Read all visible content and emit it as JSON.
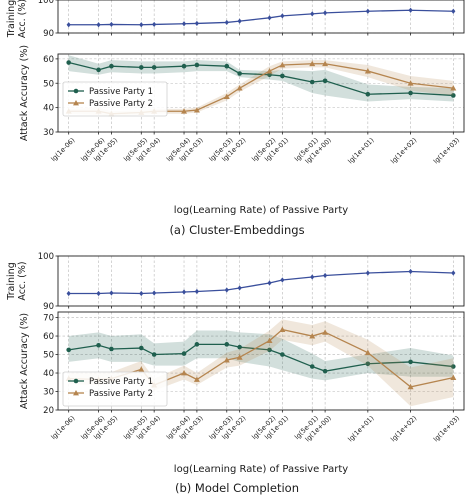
{
  "shared_x_ticks": [
    "lg(1e-06)",
    "lg(5e-06)",
    "lg(1e-05)",
    "lg(5e-05)",
    "lg(1e-04)",
    "lg(5e-04)",
    "lg(1e-03)",
    "lg(5e-03)",
    "lg(1e-02)",
    "lg(5e-02)",
    "lg(1e-01)",
    "lg(5e-01)",
    "lg(1e+00)",
    "lg(1e+01)",
    "lg(1e+02)",
    "lg(1e+03)"
  ],
  "chart_data": [
    {
      "id": "a",
      "caption": "(a) Cluster-Embeddings",
      "xlabel": "log(Learning Rate) of Passive Party",
      "x": [
        -6,
        -5.301,
        -5,
        -4.301,
        -4,
        -3.301,
        -3,
        -2.301,
        -2,
        -1.301,
        -1,
        -0.301,
        0,
        1,
        2,
        3
      ],
      "panels": [
        {
          "type": "line",
          "ylabel_lines": [
            "Training",
            "Acc. (%)"
          ],
          "ylim": [
            90,
            100
          ],
          "yticks": [
            90,
            100
          ],
          "grid": true,
          "series": [
            {
              "color": "#3a4f9c",
              "marker": "diamond",
              "values": [
                92.5,
                92.5,
                92.6,
                92.5,
                92.6,
                92.8,
                92.9,
                93.2,
                93.6,
                94.6,
                95.2,
                95.8,
                96.1,
                96.6,
                96.9,
                96.6
              ]
            }
          ]
        },
        {
          "type": "line",
          "ylabel": "Attack Accuracy (%)",
          "ylim": [
            30,
            62
          ],
          "yticks": [
            30,
            40,
            50,
            60
          ],
          "grid": true,
          "legend": "center-left",
          "series": [
            {
              "name": "Passive Party 1",
              "color": "#1f5f4e",
              "marker": "circle",
              "values": [
                58.5,
                55.5,
                57.0,
                56.5,
                56.5,
                57.0,
                57.5,
                57.0,
                54.0,
                53.5,
                53.0,
                50.5,
                51.0,
                45.5,
                46.0,
                45.0
              ],
              "band_lower": [
                55.0,
                53.5,
                54.5,
                54.0,
                54.0,
                54.5,
                55.0,
                55.0,
                52.5,
                51.5,
                51.0,
                46.0,
                45.0,
                42.5,
                43.5,
                42.5
              ],
              "band_upper": [
                61.5,
                58.0,
                59.5,
                59.0,
                59.0,
                59.0,
                59.5,
                59.0,
                55.5,
                55.0,
                55.5,
                55.0,
                55.5,
                49.5,
                48.5,
                48.0
              ]
            },
            {
              "name": "Passive Party 2",
              "color": "#b5854f",
              "marker": "triangle",
              "values": [
                38.5,
                38.5,
                37.5,
                38.0,
                38.5,
                38.5,
                39.0,
                44.5,
                48.0,
                55.0,
                57.5,
                58.0,
                58.0,
                55.0,
                50.0,
                48.0
              ],
              "band_lower": [
                37.5,
                37.0,
                36.5,
                37.0,
                37.5,
                37.5,
                38.0,
                43.0,
                46.5,
                53.0,
                56.0,
                56.5,
                56.5,
                52.5,
                47.0,
                45.0
              ],
              "band_upper": [
                39.5,
                40.0,
                38.5,
                39.0,
                39.5,
                39.5,
                40.0,
                46.0,
                49.5,
                57.0,
                59.0,
                59.5,
                59.5,
                57.5,
                53.0,
                51.0
              ]
            }
          ]
        }
      ]
    },
    {
      "id": "b",
      "caption": "(b) Model Completion",
      "xlabel": "log(Learning Rate) of Passive Party",
      "x": [
        -6,
        -5.301,
        -5,
        -4.301,
        -4,
        -3.301,
        -3,
        -2.301,
        -2,
        -1.301,
        -1,
        -0.301,
        0,
        1,
        2,
        3
      ],
      "panels": [
        {
          "type": "line",
          "ylabel_lines": [
            "Training",
            "Acc. (%)"
          ],
          "ylim": [
            90,
            100
          ],
          "yticks": [
            90,
            100
          ],
          "grid": true,
          "series": [
            {
              "color": "#3a4f9c",
              "marker": "diamond",
              "values": [
                92.5,
                92.5,
                92.6,
                92.5,
                92.6,
                92.8,
                92.9,
                93.2,
                93.6,
                94.6,
                95.2,
                95.8,
                96.1,
                96.6,
                96.9,
                96.6
              ]
            }
          ]
        },
        {
          "type": "line",
          "ylabel": "Attack Accuracy (%)",
          "ylim": [
            20,
            73
          ],
          "yticks": [
            20,
            30,
            40,
            50,
            60,
            70
          ],
          "grid": true,
          "legend": "lower-left",
          "series": [
            {
              "name": "Passive Party 1",
              "color": "#1f5f4e",
              "marker": "circle",
              "values": [
                52.5,
                55.0,
                53.0,
                53.5,
                50.0,
                50.5,
                55.5,
                55.5,
                54.0,
                52.5,
                50.0,
                43.5,
                41.0,
                45.0,
                46.0,
                43.5
              ],
              "band_lower": [
                46.0,
                48.0,
                46.0,
                46.0,
                44.0,
                44.0,
                48.0,
                48.0,
                46.0,
                43.5,
                41.5,
                37.0,
                36.0,
                40.0,
                38.0,
                38.0
              ],
              "band_upper": [
                60.0,
                62.0,
                60.0,
                61.0,
                56.0,
                57.0,
                63.0,
                63.0,
                62.0,
                61.0,
                58.5,
                50.5,
                46.5,
                50.0,
                53.5,
                49.5
              ]
            },
            {
              "name": "Passive Party 2",
              "color": "#b5854f",
              "marker": "triangle",
              "values": [
                37.0,
                36.5,
                37.0,
                42.0,
                33.5,
                40.0,
                36.5,
                47.0,
                48.5,
                57.5,
                63.5,
                60.0,
                62.0,
                51.0,
                32.5,
                37.5
              ],
              "band_lower": [
                34.0,
                33.5,
                34.0,
                38.5,
                30.5,
                36.5,
                33.5,
                43.0,
                44.0,
                52.0,
                58.0,
                55.0,
                57.0,
                44.0,
                22.0,
                27.0
              ],
              "band_upper": [
                40.0,
                40.0,
                40.5,
                46.5,
                37.0,
                44.0,
                40.0,
                51.0,
                53.0,
                63.0,
                69.0,
                66.0,
                68.0,
                58.0,
                43.0,
                48.0
              ]
            }
          ]
        }
      ]
    }
  ]
}
